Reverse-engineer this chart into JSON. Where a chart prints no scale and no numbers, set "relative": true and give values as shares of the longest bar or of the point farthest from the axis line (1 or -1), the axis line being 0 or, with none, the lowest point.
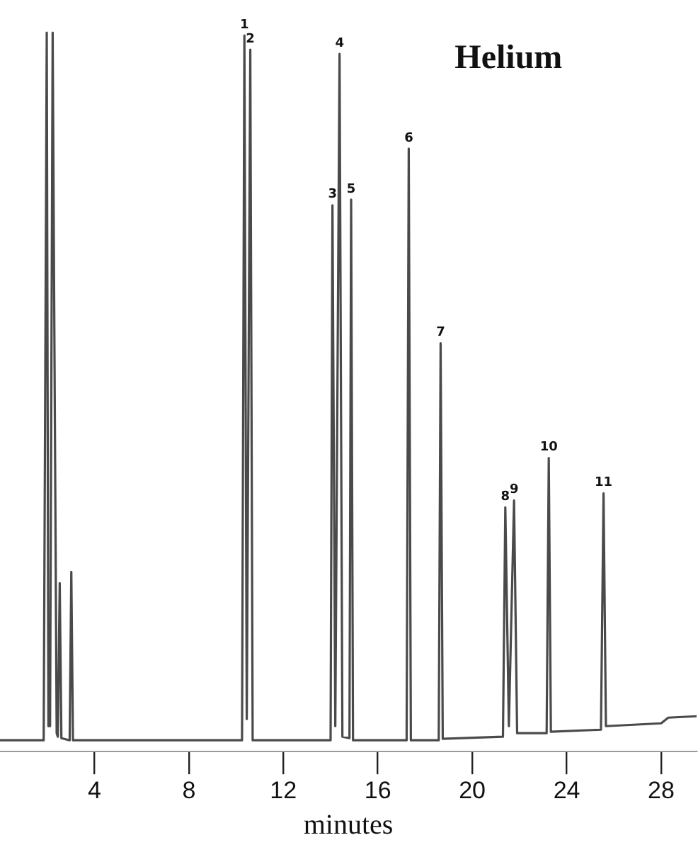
{
  "chart_data": {
    "type": "line",
    "title": "Helium",
    "xlabel": "minutes",
    "relative": true,
    "grid": false,
    "legend": false,
    "tick_labels": "x",
    "marker": "none",
    "line_style": "solid",
    "xlim": [
      0,
      29.5
    ],
    "xticks": [
      4,
      8,
      12,
      16,
      20,
      24,
      28
    ],
    "series": [
      {
        "color": "#4a4a4a",
        "x": [
          0,
          1.85,
          1.98,
          2.05,
          2.12,
          2.23,
          2.4,
          2.45,
          2.53,
          2.6,
          2.95,
          3.02,
          3.09,
          10.25,
          10.35,
          10.45,
          10.6,
          10.7,
          14.0,
          14.08,
          14.2,
          14.38,
          14.5,
          14.8,
          14.87,
          14.95,
          17.22,
          17.31,
          17.4,
          18.58,
          18.66,
          18.75,
          21.3,
          21.4,
          21.55,
          21.77,
          21.9,
          23.15,
          23.24,
          23.33,
          25.45,
          25.56,
          25.66,
          28,
          28.3,
          29.5
        ],
        "values": [
          0,
          0,
          1,
          0.02,
          0.02,
          1,
          0.01,
          0.005,
          0.222,
          0.003,
          0,
          0.238,
          0,
          0,
          0.996,
          0.03,
          0.976,
          0,
          0,
          0.756,
          0.02,
          0.97,
          0.005,
          0.003,
          0.764,
          0,
          0,
          0.836,
          0,
          0,
          0.561,
          0.002,
          0.005,
          0.329,
          0.02,
          0.339,
          0.01,
          0.01,
          0.399,
          0.012,
          0.015,
          0.349,
          0.02,
          0.024,
          0.032,
          0.034
        ]
      }
    ],
    "annotations": [
      {
        "text": "1",
        "x": 10.35,
        "y": 0.996
      },
      {
        "text": "2",
        "x": 10.6,
        "y": 0.976
      },
      {
        "text": "3",
        "x": 14.08,
        "y": 0.756
      },
      {
        "text": "4",
        "x": 14.38,
        "y": 0.97
      },
      {
        "text": "5",
        "x": 14.87,
        "y": 0.764
      },
      {
        "text": "6",
        "x": 17.31,
        "y": 0.836
      },
      {
        "text": "7",
        "x": 18.66,
        "y": 0.561
      },
      {
        "text": "8",
        "x": 21.4,
        "y": 0.329
      },
      {
        "text": "9",
        "x": 21.77,
        "y": 0.339
      },
      {
        "text": "10",
        "x": 23.24,
        "y": 0.399
      },
      {
        "text": "11",
        "x": 25.56,
        "y": 0.349
      }
    ]
  }
}
